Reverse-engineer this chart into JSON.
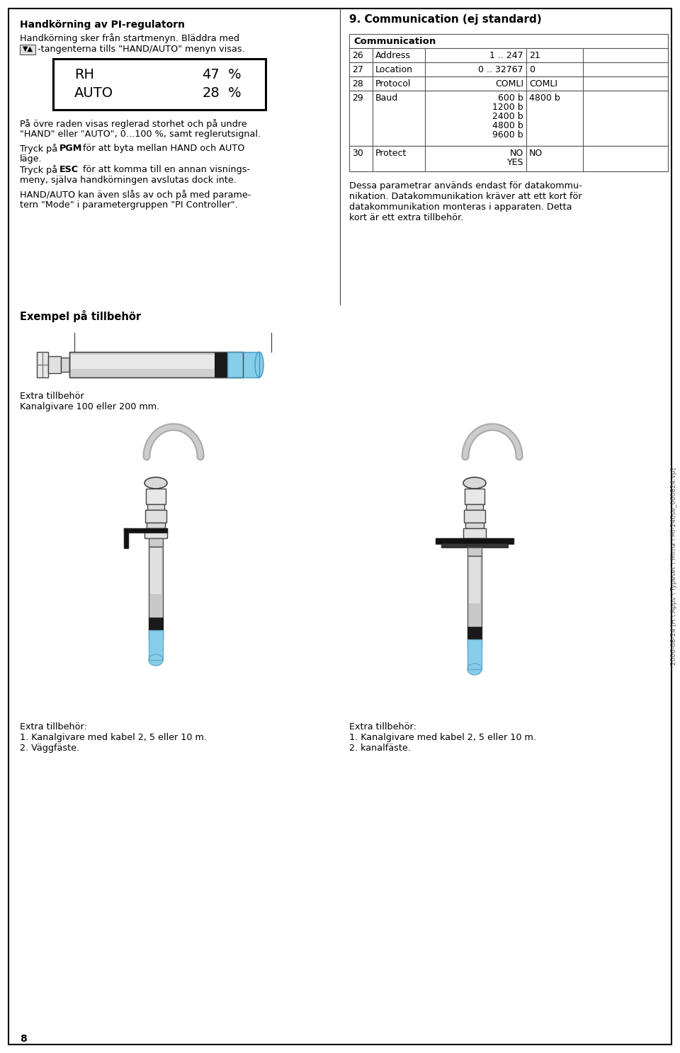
{
  "page_bg": "#ffffff",
  "text_color": "#000000",
  "title_left": "Handkörning av PI-regulatorn",
  "section_title": "9. Communication (ej standard)",
  "table_header": "Communication",
  "table_rows": [
    [
      "26",
      "Address",
      "1 .. 247",
      "21"
    ],
    [
      "27",
      "Location",
      "0 .. 32767",
      "0"
    ],
    [
      "28",
      "Protocol",
      "COMLI",
      "COMLI"
    ],
    [
      "29",
      "Baud",
      "600 b\n1200 b\n2400 b\n4800 b\n9600 b",
      "4800 b"
    ],
    [
      "30",
      "Protect",
      "NO\nYES",
      "NO"
    ]
  ],
  "section2_title": "Exempel på tillbehör",
  "sensor_label1": "Extra tillbehör",
  "sensor_label2": "Kanalgivare 100 eller 200 mm.",
  "bottom_left_lines": [
    "Extra tillbehör:",
    "1. Kanalgivare med kabel 2, 5 eller 10 m.",
    "2. Väggfäste."
  ],
  "bottom_right_lines": [
    "Extra tillbehör:",
    "1. Kanalgivare med kabel 2, 5 eller 10 m.",
    "2. kanalfäste."
  ],
  "page_number": "8",
  "watermark": "2006-08-24 [H:\\ Apps \\ Typeset \\ Mima \\ MI-240se_060824.vp]",
  "gray_light": "#d8d8d8",
  "gray_mid": "#bbbbbb",
  "gray_dark": "#888888",
  "blue_tip": "#87ceeb",
  "black_band": "#1a1a1a",
  "border_col": "#333333"
}
